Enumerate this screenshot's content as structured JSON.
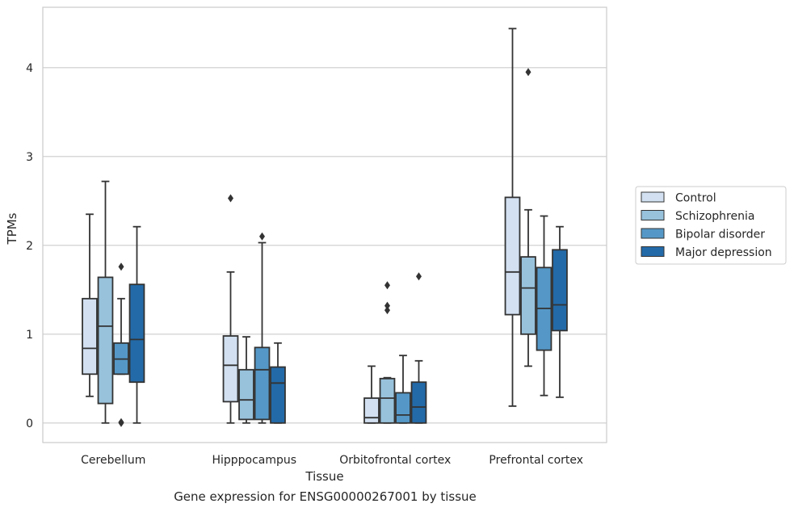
{
  "caption": "Gene expression for ENSG00000267001 by tissue",
  "colors": {
    "background": "#ffffff",
    "grid": "#cccccc",
    "frame": "#cccccc",
    "line": "#333333",
    "series": [
      "#d2e0f1",
      "#98c2dc",
      "#5598c7",
      "#236aa8"
    ]
  },
  "chart_data": {
    "type": "box",
    "title": "",
    "xlabel": "Tissue",
    "ylabel": "TPMs",
    "ylim": [
      -0.22,
      4.68
    ],
    "yticks": [
      0,
      1,
      2,
      3,
      4
    ],
    "grid": "horizontal",
    "legend_position": "right",
    "categories": [
      "Cerebellum",
      "Hipppocampus",
      "Orbitofrontal cortex",
      "Prefrontal cortex"
    ],
    "series": [
      {
        "name": "Control",
        "boxes": [
          {
            "whislo": 0.3,
            "q1": 0.55,
            "med": 0.84,
            "q3": 1.4,
            "whishi": 2.35,
            "fliers": []
          },
          {
            "whislo": 0.0,
            "q1": 0.24,
            "med": 0.65,
            "q3": 0.98,
            "whishi": 1.7,
            "fliers": [
              2.53
            ]
          },
          {
            "whislo": 0.0,
            "q1": 0.0,
            "med": 0.06,
            "q3": 0.28,
            "whishi": 0.64,
            "fliers": []
          },
          {
            "whislo": 0.19,
            "q1": 1.22,
            "med": 1.7,
            "q3": 2.54,
            "whishi": 4.44,
            "fliers": []
          }
        ]
      },
      {
        "name": "Schizophrenia",
        "boxes": [
          {
            "whislo": 0.0,
            "q1": 0.22,
            "med": 1.09,
            "q3": 1.64,
            "whishi": 2.72,
            "fliers": []
          },
          {
            "whislo": 0.0,
            "q1": 0.04,
            "med": 0.26,
            "q3": 0.6,
            "whishi": 0.97,
            "fliers": []
          },
          {
            "whislo": 0.0,
            "q1": 0.0,
            "med": 0.28,
            "q3": 0.5,
            "whishi": 0.51,
            "fliers": [
              1.27,
              1.32,
              1.55
            ]
          },
          {
            "whislo": 0.64,
            "q1": 1.0,
            "med": 1.52,
            "q3": 1.87,
            "whishi": 2.4,
            "fliers": [
              3.95
            ]
          }
        ]
      },
      {
        "name": "Bipolar disorder",
        "boxes": [
          {
            "whislo": 0.55,
            "q1": 0.55,
            "med": 0.72,
            "q3": 0.9,
            "whishi": 1.4,
            "fliers": [
              1.76,
              0.0,
              0.01
            ]
          },
          {
            "whislo": 0.0,
            "q1": 0.04,
            "med": 0.6,
            "q3": 0.85,
            "whishi": 2.03,
            "fliers": [
              2.1
            ]
          },
          {
            "whislo": 0.0,
            "q1": 0.0,
            "med": 0.09,
            "q3": 0.34,
            "whishi": 0.76,
            "fliers": []
          },
          {
            "whislo": 0.31,
            "q1": 0.82,
            "med": 1.29,
            "q3": 1.75,
            "whishi": 2.33,
            "fliers": []
          }
        ]
      },
      {
        "name": "Major depression",
        "boxes": [
          {
            "whislo": 0.0,
            "q1": 0.46,
            "med": 0.94,
            "q3": 1.56,
            "whishi": 2.21,
            "fliers": []
          },
          {
            "whislo": 0.0,
            "q1": 0.0,
            "med": 0.45,
            "q3": 0.63,
            "whishi": 0.9,
            "fliers": []
          },
          {
            "whislo": 0.0,
            "q1": 0.0,
            "med": 0.18,
            "q3": 0.46,
            "whishi": 0.7,
            "fliers": [
              1.65
            ]
          },
          {
            "whislo": 0.29,
            "q1": 1.04,
            "med": 1.33,
            "q3": 1.95,
            "whishi": 2.21,
            "fliers": []
          }
        ]
      }
    ]
  }
}
